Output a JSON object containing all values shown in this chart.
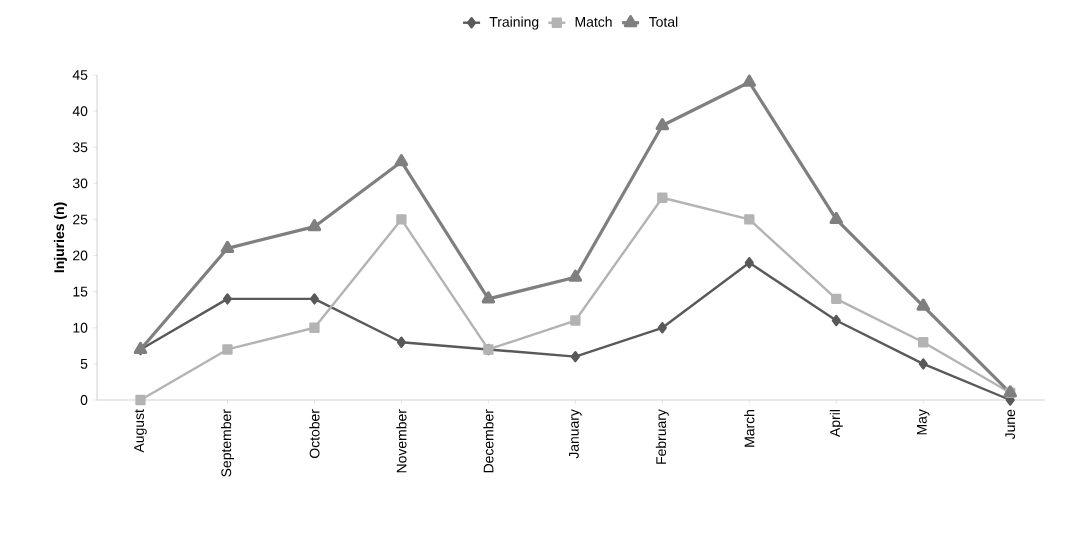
{
  "chart_data": {
    "type": "line",
    "ylabel": "**Injuries (n)**",
    "categories": [
      "August",
      "September",
      "October",
      "November",
      "December",
      "January",
      "February",
      "March",
      "April",
      "May",
      "June"
    ],
    "series": [
      {
        "name": "Training",
        "color": "#595959",
        "marker": "diamond",
        "values": [
          7,
          14,
          14,
          8,
          7,
          6,
          10,
          19,
          11,
          5,
          0
        ]
      },
      {
        "name": "Match",
        "color": "#b3b3b3",
        "marker": "square",
        "values": [
          0,
          7,
          10,
          25,
          7,
          11,
          28,
          25,
          14,
          8,
          1
        ]
      },
      {
        "name": "Total",
        "color": "#7f7f7f",
        "marker": "triangle",
        "values": [
          7,
          21,
          24,
          33,
          14,
          17,
          38,
          44,
          25,
          13,
          1
        ]
      }
    ],
    "ylim": [
      0,
      45
    ],
    "yticks": [
      0,
      5,
      10,
      15,
      20,
      25,
      30,
      35,
      40,
      45
    ],
    "grid": false,
    "legend": "top",
    "line_style": "solid"
  }
}
